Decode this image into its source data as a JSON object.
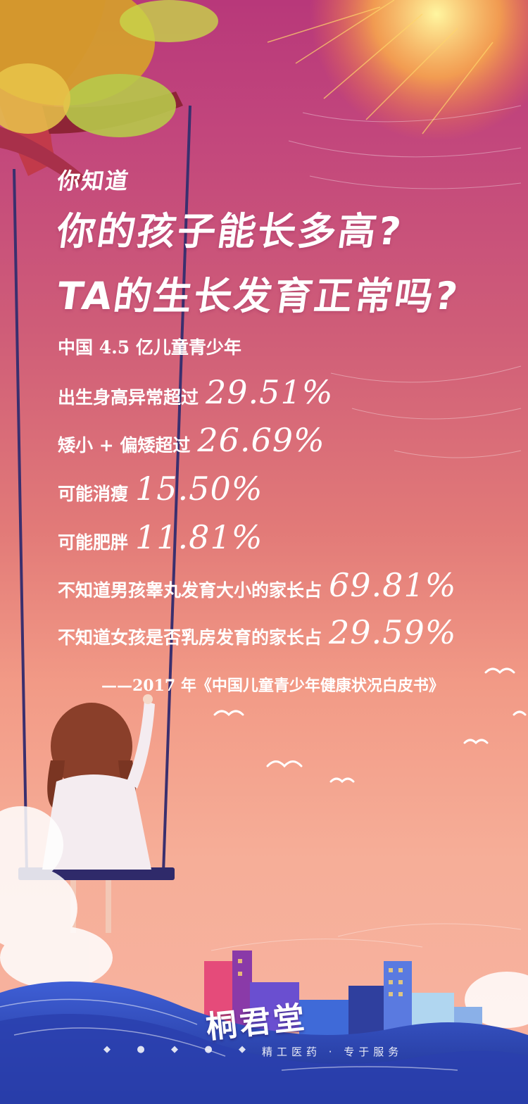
{
  "header": {
    "kicker": "你知道",
    "headline_1": "你的孩子能长多高?",
    "headline_2": "TA的生长发育正常吗?"
  },
  "stats": [
    {
      "label": "中国 4.5 亿儿童青少年",
      "value": ""
    },
    {
      "label": "出生身高异常超过",
      "value": "29.51%"
    },
    {
      "label": "矮小 + 偏矮超过",
      "value": "26.69%"
    },
    {
      "label": "可能消瘦",
      "value": "15.50%"
    },
    {
      "label": "可能肥胖",
      "value": "11.81%"
    },
    {
      "label": "不知道男孩睾丸发育大小的家长占",
      "value": "69.81%"
    },
    {
      "label": "不知道女孩是否乳房发育的家长占",
      "value": "29.59%"
    }
  ],
  "source": "——2017 年《中国儿童青少年健康状况白皮书》",
  "brand": {
    "logo": "桐君堂",
    "slogan": "精工医药 · 专于服务"
  },
  "colors": {
    "bg_top": "#b8387a",
    "bg_bottom": "#f8b4a2",
    "text": "#ffffff"
  },
  "icons": [
    "tree-foliage",
    "swing",
    "girl-illustration",
    "seagull-icon",
    "cloud",
    "city-buildings",
    "waves",
    "mini-icon"
  ]
}
